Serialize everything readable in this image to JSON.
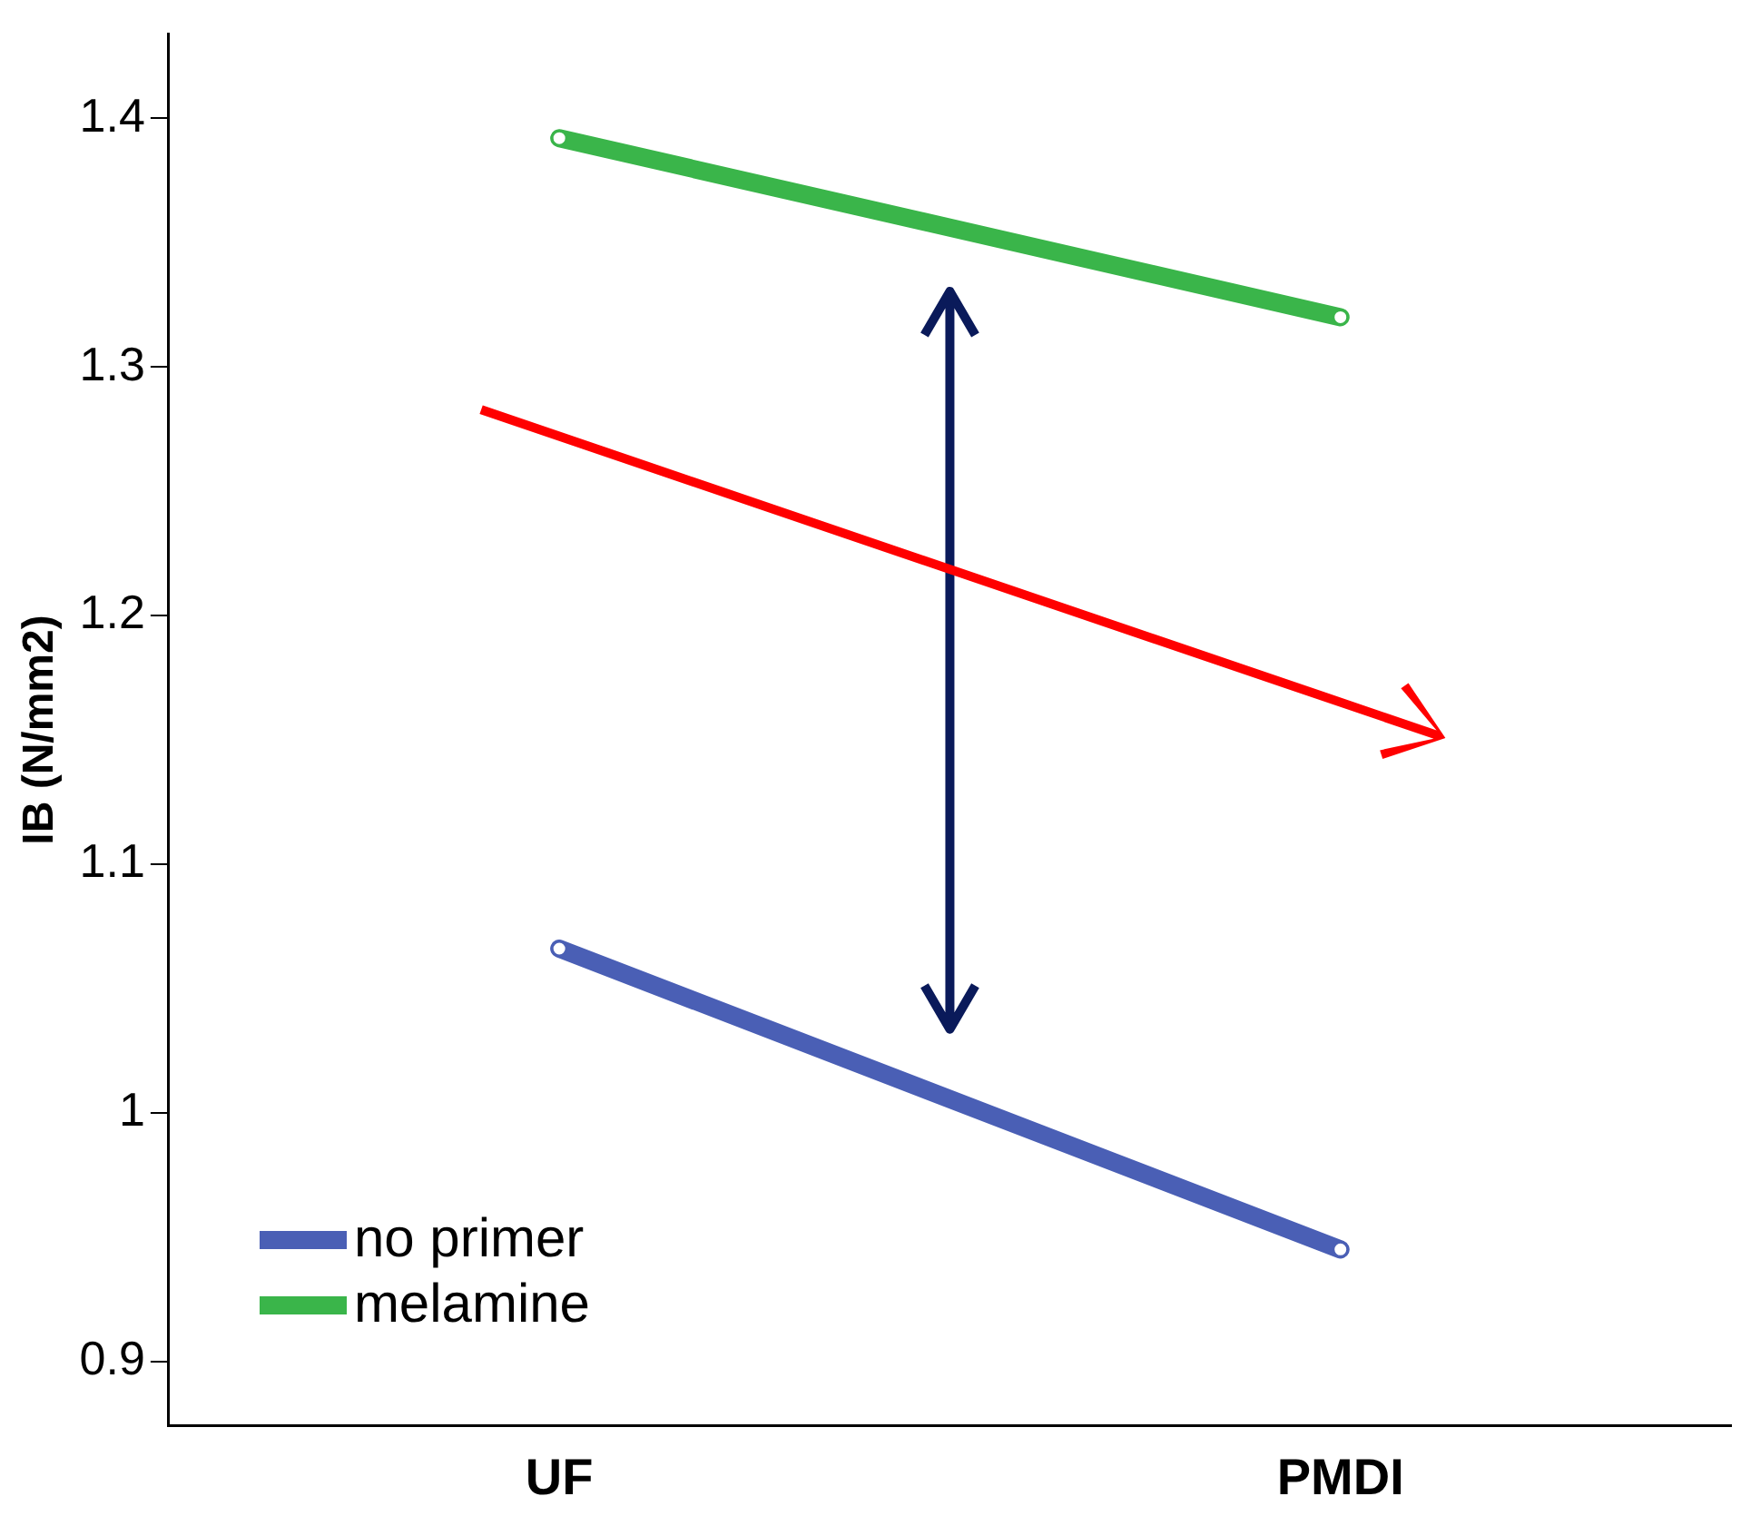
{
  "chart_data": {
    "type": "line",
    "ylabel": "IB (N/mm2)",
    "categories": [
      "UF",
      "PMDI"
    ],
    "series": [
      {
        "name": "no primer",
        "color": "#4a5fb5",
        "values": [
          1.066,
          0.945
        ]
      },
      {
        "name": "melamine",
        "color": "#3ab54a",
        "values": [
          1.392,
          1.32
        ]
      }
    ],
    "ylim": [
      0.874,
      1.434
    ],
    "yticks": [
      0.9,
      1.0,
      1.1,
      1.2,
      1.3,
      1.4
    ],
    "grid": false,
    "legend": "bottom left",
    "marker": "circle",
    "line_style": "solid"
  }
}
